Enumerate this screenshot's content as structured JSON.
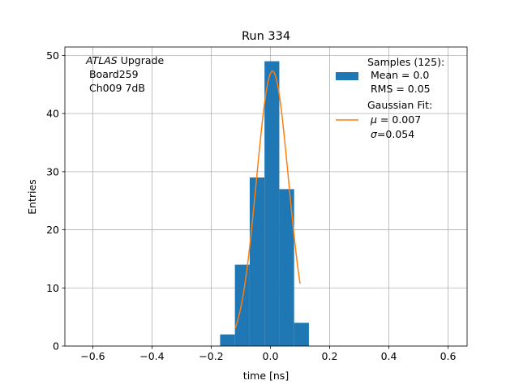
{
  "chart_data": {
    "type": "bar",
    "title": "Run 334",
    "xlabel": "time [ns]",
    "ylabel": "Entries",
    "xlim": [
      -0.6943,
      0.6643
    ],
    "ylim": [
      0,
      51.45
    ],
    "grid": true,
    "x_ticks": [
      -0.6,
      -0.4,
      -0.2,
      0.0,
      0.2,
      0.4,
      0.6
    ],
    "x_tick_labels": [
      "−0.6",
      "−0.4",
      "−0.2",
      "0.0",
      "0.2",
      "0.4",
      "0.6"
    ],
    "y_ticks": [
      0,
      10,
      20,
      30,
      40,
      50
    ],
    "y_tick_labels": [
      "0",
      "10",
      "20",
      "30",
      "40",
      "50"
    ],
    "histogram": {
      "name": "Samples (125)",
      "color": "#1f77b4",
      "bin_edges": [
        -0.17,
        -0.12,
        -0.07,
        -0.02,
        0.03,
        0.08,
        0.13
      ],
      "counts": [
        2,
        14,
        29,
        49,
        27,
        4
      ]
    },
    "fit": {
      "name": "Gaussian Fit",
      "color": "#ff7f0e",
      "mu": 0.007,
      "sigma": 0.054,
      "amplitude": 47.3,
      "x_range": [
        -0.12,
        0.1
      ]
    },
    "annotation": {
      "italic": "ATLAS",
      "rest": " Upgrade",
      "lines": [
        " Board259",
        " Ch009 7dB"
      ]
    },
    "legend": {
      "placement": "top-right",
      "samples_title": "Samples (125):",
      "samples_lines": [
        " Mean = 0.0",
        " RMS = 0.05"
      ],
      "fit_title": "Gaussian Fit:",
      "fit_mu_symbol": "μ",
      "fit_mu_value": " = 0.007",
      "fit_sigma_symbol": "σ",
      "fit_sigma_value": "=0.054"
    }
  }
}
